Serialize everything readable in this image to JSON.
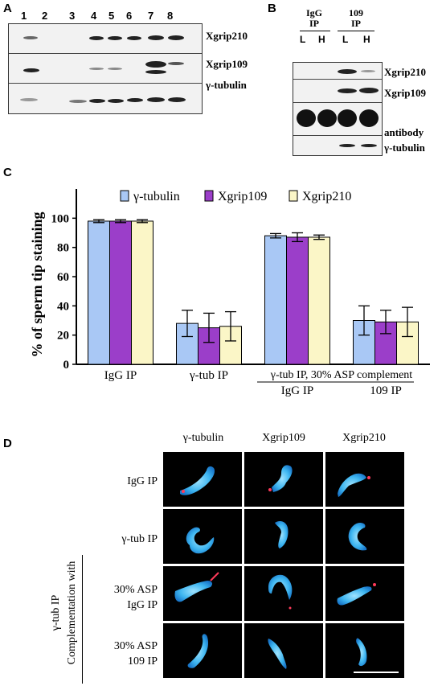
{
  "panel_a": {
    "label": "A",
    "lanes": [
      "1",
      "2",
      "3",
      "4",
      "5",
      "6",
      "7",
      "8"
    ],
    "rows": [
      "Xgrip210",
      "Xgrip109",
      "γ-tubulin"
    ]
  },
  "panel_b": {
    "label": "B",
    "group1": "IgG IP",
    "group1_line1": "IgG",
    "group1_line2": "IP",
    "group2_line1": "109",
    "group2_line2": "IP",
    "lanes": [
      "L",
      "H",
      "L",
      "H"
    ],
    "rows": [
      "Xgrip210",
      "Xgrip109",
      "antibody",
      "γ-tubulin"
    ]
  },
  "panel_c": {
    "label": "C",
    "chart_data": {
      "type": "bar",
      "ylabel": "% of sperm tip staining",
      "ylim": [
        0,
        120
      ],
      "yticks": [
        "0",
        "20",
        "40",
        "60",
        "80",
        "100"
      ],
      "categories": [
        "IgG IP",
        "γ-tub IP",
        "IgG IP",
        "109 IP"
      ],
      "group_caption": "γ-tub IP, 30% ASP complement",
      "series": [
        {
          "name": "γ-tubulin",
          "color": "#a9c8f5",
          "values": [
            98,
            28,
            88,
            30
          ],
          "errors": [
            1,
            9,
            1.5,
            10
          ]
        },
        {
          "name": "Xgrip109",
          "color": "#9b3ec9",
          "values": [
            98,
            25,
            87,
            29
          ],
          "errors": [
            1,
            10,
            3,
            8
          ]
        },
        {
          "name": "Xgrip210",
          "color": "#fbf6c7",
          "values": [
            98,
            26,
            87,
            29
          ],
          "errors": [
            1,
            10,
            1.5,
            10
          ]
        }
      ]
    }
  },
  "panel_d": {
    "label": "D",
    "columns": [
      "γ-tubulin",
      "Xgrip109",
      "Xgrip210"
    ],
    "rows": [
      "IgG IP",
      "γ-tub IP"
    ],
    "complement_rows": [
      {
        "line1": "30% ASP",
        "line2": "IgG IP"
      },
      {
        "line1": "30% ASP",
        "line2": "109 IP"
      }
    ],
    "side_label_1": "γ-tub IP",
    "side_label_2": "Complementation with"
  }
}
